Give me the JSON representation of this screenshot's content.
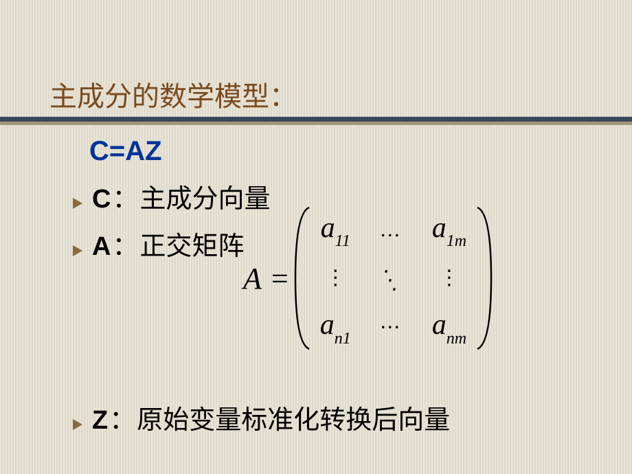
{
  "title": {
    "text": "主成分的数学模型：",
    "color": "#7a4a1e"
  },
  "equation": {
    "text": "C=AZ",
    "color": "#003399"
  },
  "bullets": [
    {
      "label": "C",
      "sep": "：",
      "text": "主成分向量",
      "triangle_color": "#8a6a3a"
    },
    {
      "label": "A",
      "sep": "：",
      "text": "正交矩阵",
      "triangle_color": "#8a6a3a"
    },
    {
      "label": "Z",
      "sep": "：",
      "text": "原始变量标准化转换后向量",
      "triangle_color": "#8a6a3a"
    }
  ],
  "matrix": {
    "lhs": "A",
    "eq": "=",
    "cells": {
      "c11_base": "a",
      "c11_sub": "11",
      "c12": "…",
      "c13_base": "a",
      "c13_sub1": "1",
      "c13_sub2": "m",
      "c21": "⋮",
      "c22": "⋱",
      "c23": "⋮",
      "c31_base": "a",
      "c31_sub1": "n",
      "c31_sub2": "1",
      "c32": "⋯",
      "c33_base": "a",
      "c33_sub": "nm"
    },
    "paren_color": "#000000",
    "paren_height": 210,
    "paren_width": 26
  },
  "style": {
    "underline_dark": "#36485c",
    "underline_light": "#a09678",
    "bg_stripe_a": "#e8e4d8",
    "bg_stripe_b": "#ded9ca"
  }
}
